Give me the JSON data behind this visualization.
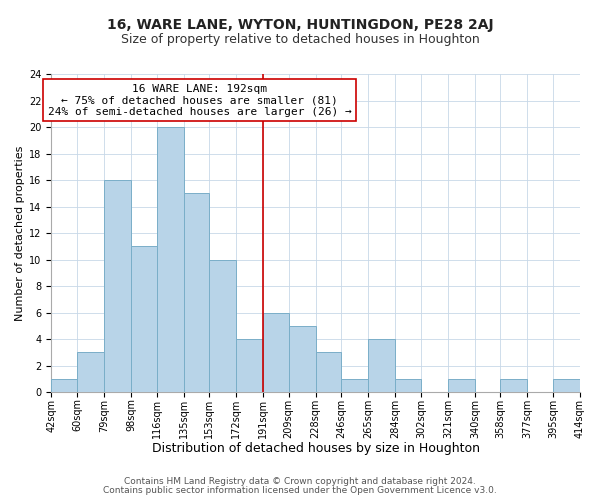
{
  "title": "16, WARE LANE, WYTON, HUNTINGDON, PE28 2AJ",
  "subtitle": "Size of property relative to detached houses in Houghton",
  "xlabel": "Distribution of detached houses by size in Houghton",
  "ylabel": "Number of detached properties",
  "bin_edges": [
    42,
    60,
    79,
    98,
    116,
    135,
    153,
    172,
    191,
    209,
    228,
    246,
    265,
    284,
    302,
    321,
    340,
    358,
    377,
    395,
    414
  ],
  "bin_labels": [
    "42sqm",
    "60sqm",
    "79sqm",
    "98sqm",
    "116sqm",
    "135sqm",
    "153sqm",
    "172sqm",
    "191sqm",
    "209sqm",
    "228sqm",
    "246sqm",
    "265sqm",
    "284sqm",
    "302sqm",
    "321sqm",
    "340sqm",
    "358sqm",
    "377sqm",
    "395sqm",
    "414sqm"
  ],
  "counts": [
    1,
    3,
    16,
    11,
    20,
    15,
    10,
    4,
    6,
    5,
    3,
    1,
    4,
    1,
    0,
    1,
    0,
    1,
    0,
    1
  ],
  "bar_color": "#b8d4e8",
  "bar_edge_color": "#7aaec8",
  "vline_x": 191,
  "vline_color": "#cc0000",
  "annotation_line1": "16 WARE LANE: 192sqm",
  "annotation_line2": "← 75% of detached houses are smaller (81)",
  "annotation_line3": "24% of semi-detached houses are larger (26) →",
  "annotation_box_color": "#ffffff",
  "annotation_box_edge": "#cc0000",
  "ylim": [
    0,
    24
  ],
  "yticks": [
    0,
    2,
    4,
    6,
    8,
    10,
    12,
    14,
    16,
    18,
    20,
    22,
    24
  ],
  "footer1": "Contains HM Land Registry data © Crown copyright and database right 2024.",
  "footer2": "Contains public sector information licensed under the Open Government Licence v3.0.",
  "title_fontsize": 10,
  "subtitle_fontsize": 9,
  "xlabel_fontsize": 9,
  "ylabel_fontsize": 8,
  "tick_fontsize": 7,
  "footer_fontsize": 6.5,
  "annotation_fontsize": 8
}
